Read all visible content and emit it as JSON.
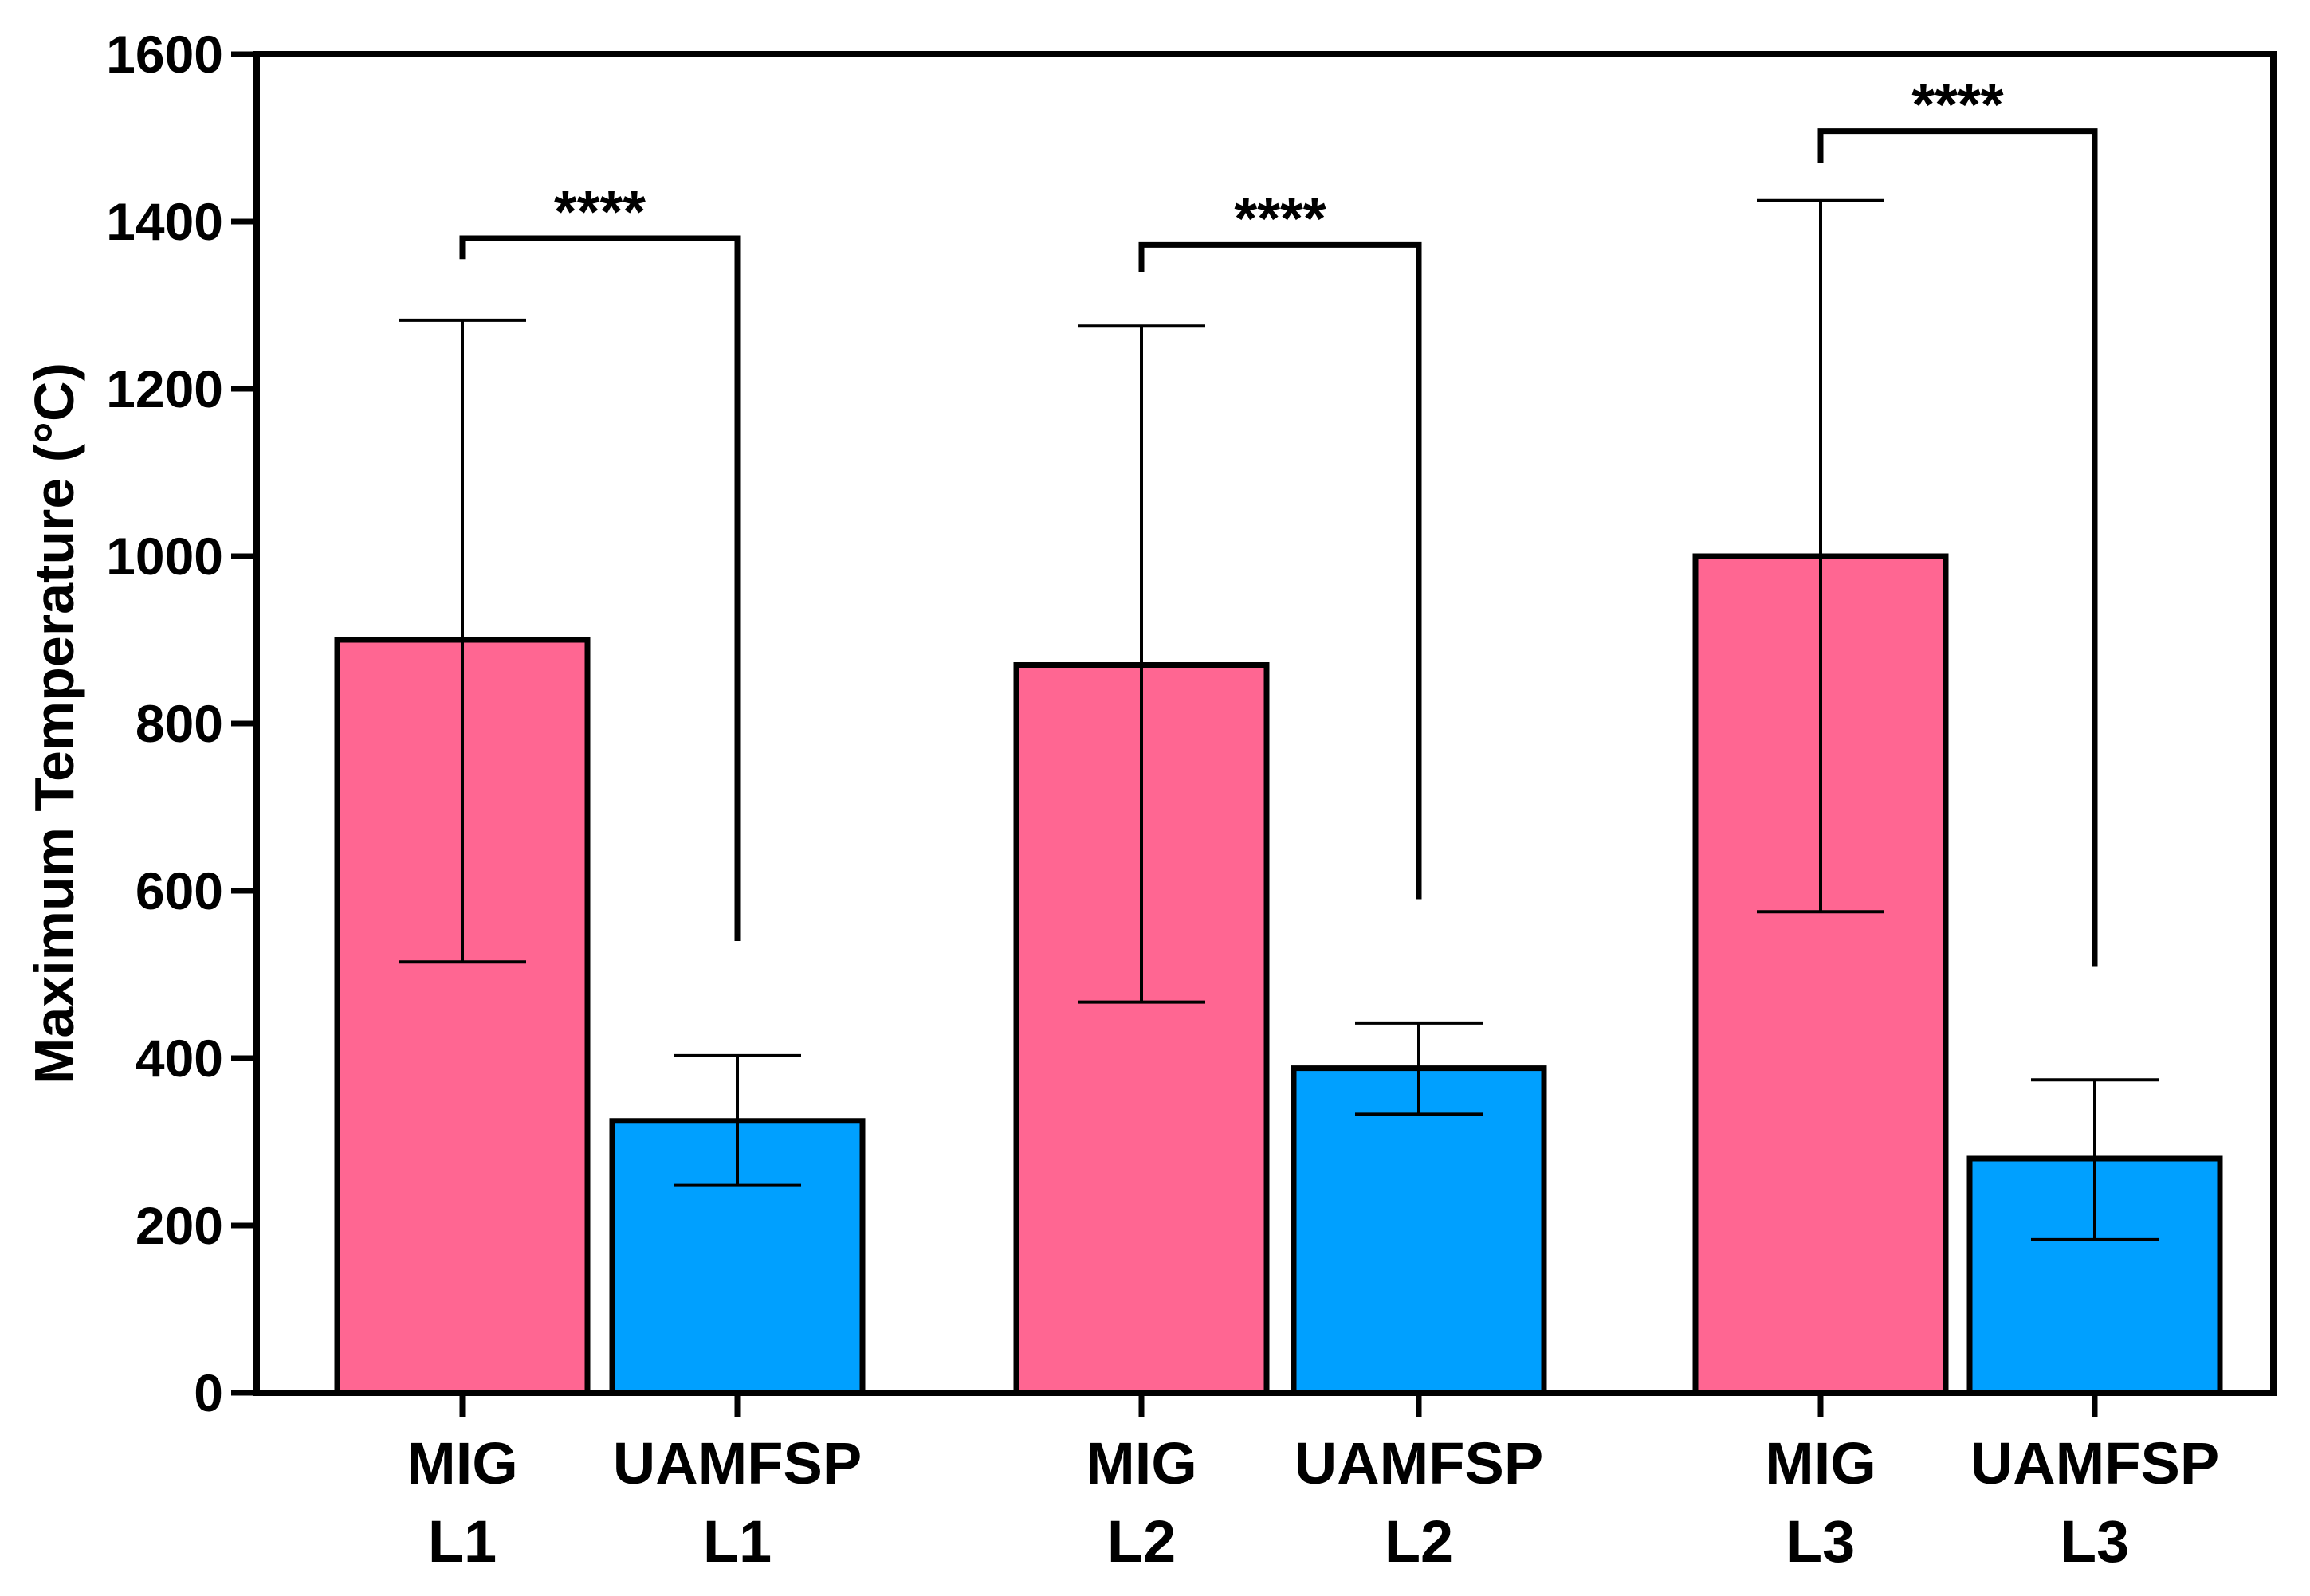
{
  "chart_data": {
    "type": "bar",
    "title": "",
    "xlabel": "",
    "ylabel": "Maximum Temperature (°C)",
    "ylim": [
      0,
      1600
    ],
    "yticks": [
      0,
      200,
      400,
      600,
      800,
      1000,
      1200,
      1400,
      1600
    ],
    "grid": false,
    "legend": "none",
    "bars": [
      {
        "line1": "MIG",
        "line2": "L1",
        "value": 900,
        "err_low": 515,
        "err_high": 1282,
        "color": "#ff6692"
      },
      {
        "line1": "UAMFSP",
        "line2": "L1",
        "value": 325,
        "err_low": 248,
        "err_high": 403,
        "color": "#00a0ff"
      },
      {
        "line1": "MIG",
        "line2": "L2",
        "value": 870,
        "err_low": 467,
        "err_high": 1275,
        "color": "#ff6692"
      },
      {
        "line1": "UAMFSP",
        "line2": "L2",
        "value": 388,
        "err_low": 333,
        "err_high": 442,
        "color": "#00a0ff"
      },
      {
        "line1": "MIG",
        "line2": "L3",
        "value": 1000,
        "err_low": 575,
        "err_high": 1425,
        "color": "#ff6692"
      },
      {
        "line1": "UAMFSP",
        "line2": "L3",
        "value": 280,
        "err_low": 183,
        "err_high": 374,
        "color": "#00a0ff"
      }
    ],
    "significance": [
      {
        "from": 0,
        "to": 1,
        "label": "****",
        "level": 1380,
        "left_end": 1355,
        "right_end": 540
      },
      {
        "from": 2,
        "to": 3,
        "label": "****",
        "level": 1372,
        "left_end": 1340,
        "right_end": 590
      },
      {
        "from": 4,
        "to": 5,
        "label": "****",
        "level": 1508,
        "left_end": 1470,
        "right_end": 510
      }
    ]
  }
}
